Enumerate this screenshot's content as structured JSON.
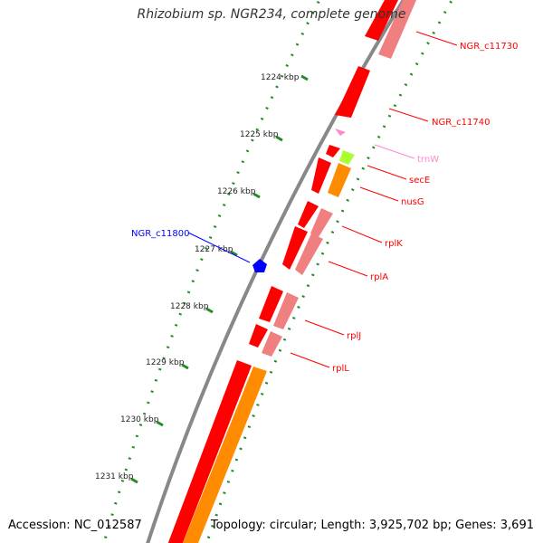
{
  "title": "Rhizobium sp. NGR234, complete genome",
  "accession": "Accession: NC_012587",
  "topology": "Topology: circular; Length: 3,925,702 bp; Genes: 3,691",
  "kbp_ticks": [
    "1224 kbp",
    "1225 kbp",
    "1226 kbp",
    "1227 kbp",
    "1228 kbp",
    "1229 kbp",
    "1230 kbp",
    "1231 kbp"
  ],
  "gene_labels": {
    "ngr_c11730": "NGR_c11730",
    "ngr_c11740": "NGR_c11740",
    "trnw": "trnW",
    "sece": "secE",
    "nusg": "nusG",
    "rplk": "rplK",
    "rpla": "rplA",
    "rplj": "rplJ",
    "rpll": "rplL",
    "ngr_c11800": "NGR_c11800"
  },
  "colors": {
    "cds": "#ff0000",
    "cds_pale": "#f08080",
    "trna": "#ff88cc",
    "green_gene": "#aaff33",
    "orange_gene": "#ff8c00",
    "reverse_gene": "#0000ff",
    "backbone": "#888888",
    "ticks": "#228b22"
  }
}
